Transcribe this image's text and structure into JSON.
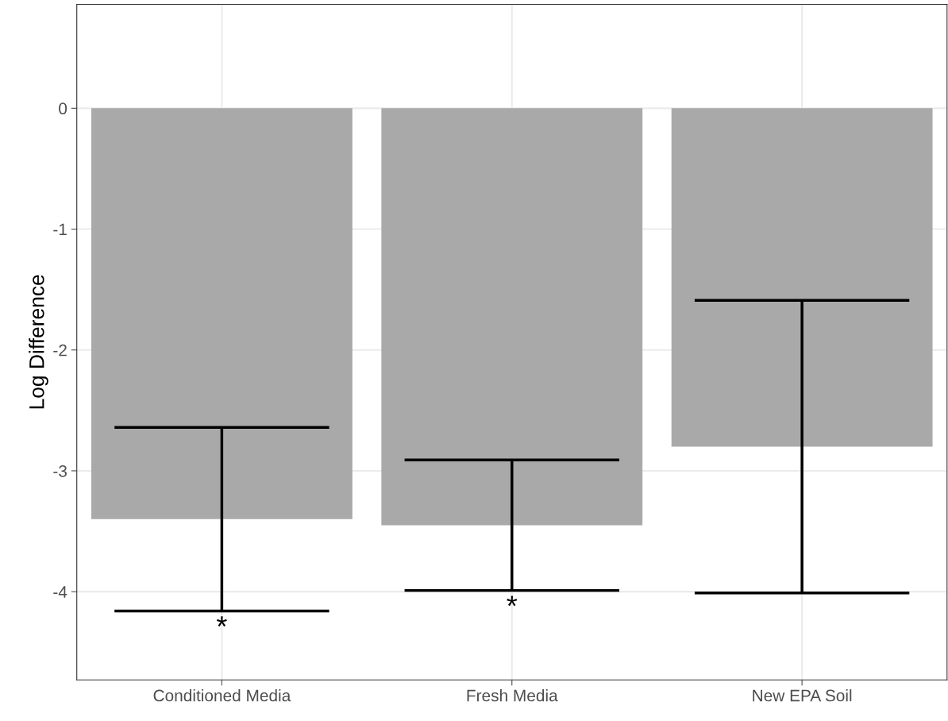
{
  "chart_data": {
    "type": "bar",
    "ylabel": "Log Difference",
    "categories": [
      "Conditioned Media",
      "Fresh Media",
      "New EPA Soil"
    ],
    "values": [
      -3.4,
      -3.45,
      -2.8
    ],
    "errors": [
      0.76,
      0.54,
      1.21
    ],
    "color": "#a9a9a9",
    "ylim": [
      -4.73,
      0.86
    ],
    "yticks": [
      {
        "value": -4,
        "label": "-4"
      },
      {
        "value": -3,
        "label": "-3"
      },
      {
        "value": -2,
        "label": "-2"
      },
      {
        "value": -1,
        "label": "-1"
      },
      0
    ],
    "grid": true,
    "annotations": [
      "*",
      "*"
    ]
  }
}
